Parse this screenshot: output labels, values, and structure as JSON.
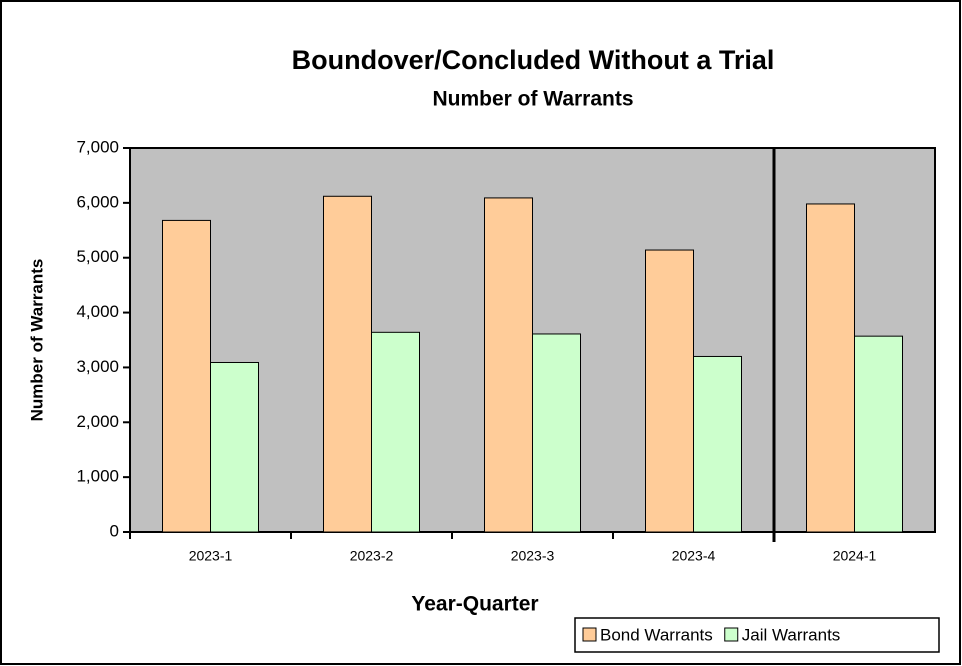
{
  "chart_data": {
    "type": "bar",
    "title": "Boundover/Concluded Without a Trial",
    "subtitle": "Number of Warrants",
    "x_label": "Year-Quarter",
    "y_label": "Number of Warrants",
    "categories": [
      "2023-1",
      "2023-2",
      "2023-3",
      "2023-4",
      "2024-1"
    ],
    "series": [
      {
        "name": "Bond Warrants",
        "color": "#ffcc99",
        "values": [
          5680,
          6120,
          6090,
          5140,
          5980
        ]
      },
      {
        "name": "Jail Warrants",
        "color": "#ccffcc",
        "values": [
          3090,
          3640,
          3610,
          3200,
          3570
        ]
      }
    ],
    "ylim": [
      0,
      7000
    ],
    "yticks": [
      0,
      {
        "value": 1000,
        "label": "1,000"
      },
      {
        "value": 2000,
        "label": "2,000"
      },
      {
        "value": 3000,
        "label": "3,000"
      },
      {
        "value": 4000,
        "label": "4,000"
      },
      {
        "value": 5000,
        "label": "5,000"
      },
      {
        "value": 6000,
        "label": "6,000"
      },
      {
        "value": 7000,
        "label": "7,000"
      }
    ],
    "plot_background": "#c0c0c0",
    "legend": "bottom-right"
  }
}
